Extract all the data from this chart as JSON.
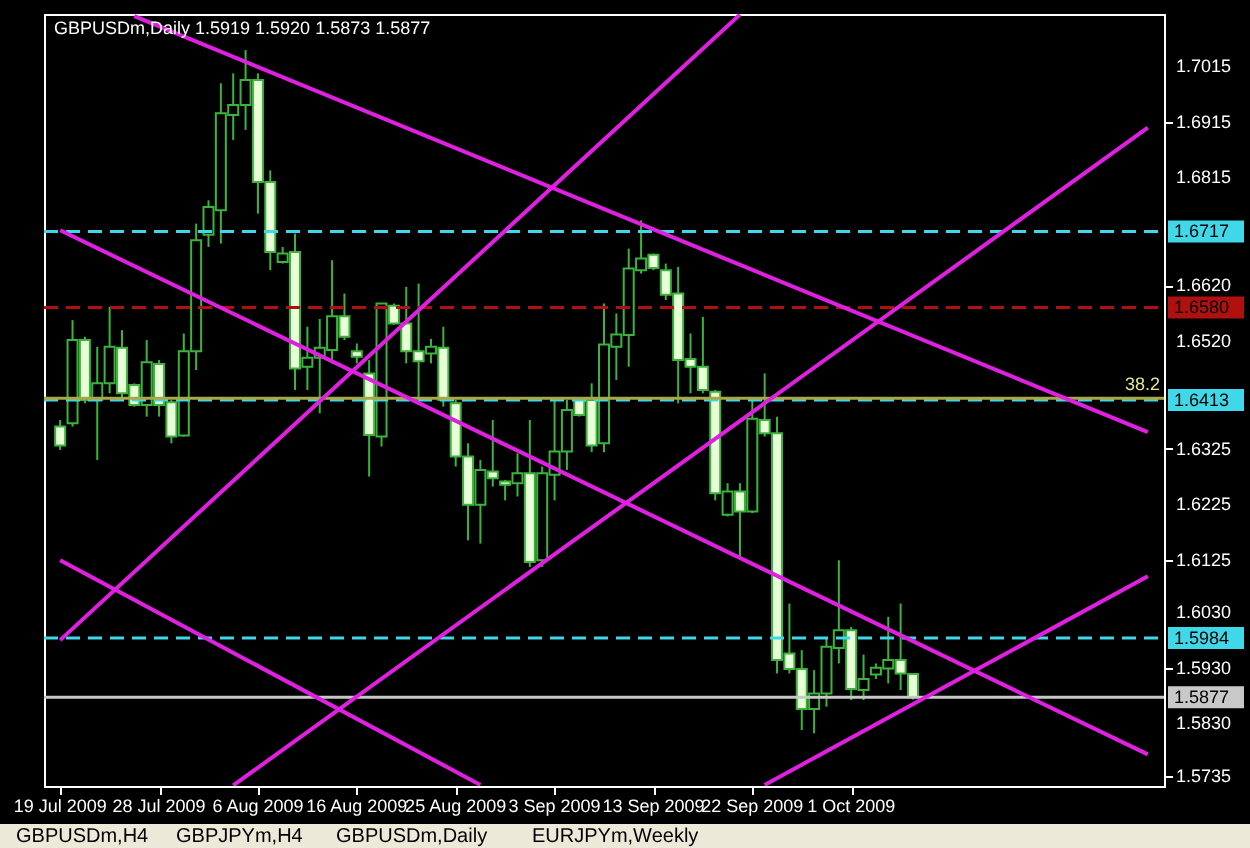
{
  "chart_data": {
    "type": "candlestick",
    "title": "GBPUSDm,Daily  1.5919 1.5920 1.5873 1.5877",
    "categories": [
      "19 Jul 2009",
      null,
      null,
      null,
      null,
      null,
      null,
      null,
      "28 Jul 2009",
      null,
      null,
      null,
      null,
      null,
      null,
      null,
      "6 Aug 2009",
      null,
      null,
      null,
      null,
      null,
      null,
      null,
      "16 Aug 2009",
      null,
      null,
      null,
      null,
      null,
      null,
      null,
      "25 Aug 2009",
      null,
      null,
      null,
      null,
      null,
      null,
      null,
      "3 Sep 2009",
      null,
      null,
      null,
      null,
      null,
      null,
      null,
      "13 Sep 2009",
      null,
      null,
      null,
      null,
      null,
      null,
      null,
      "22 Sep 2009",
      null,
      null,
      null,
      null,
      null,
      null,
      null,
      "1 Oct 2009",
      null,
      null,
      null,
      null,
      null,
      null,
      null,
      null,
      null,
      null,
      null,
      null,
      null,
      null,
      null,
      null,
      null,
      null,
      null,
      null,
      null,
      null,
      null,
      null
    ],
    "ylim": [
      1.5717,
      1.7109
    ],
    "yticks": [
      {
        "value": 1.7015,
        "label": "1.7015"
      },
      {
        "value": 1.6915,
        "label": "1.6915"
      },
      {
        "value": 1.6815,
        "label": "1.6815"
      },
      {
        "value": 1.662,
        "label": "1.6620"
      },
      {
        "value": 1.652,
        "label": "1.6520"
      },
      {
        "value": 1.6325,
        "label": "1.6325"
      },
      {
        "value": 1.6225,
        "label": "1.6225"
      },
      {
        "value": 1.6125,
        "label": "1.6125"
      },
      {
        "value": 1.603,
        "label": "1.6030"
      },
      {
        "value": 1.593,
        "label": "1.5930"
      },
      {
        "value": 1.583,
        "label": "1.5830"
      },
      {
        "value": 1.5735,
        "label": "1.5735"
      }
    ],
    "series": [
      {
        "color": "#3cb43c",
        "colors": [
          "#e8ffd8",
          "#000000",
          "#e8ffd8",
          "#000000",
          "#000000",
          "#e8ffd8",
          "#e8ffd8",
          "#000000",
          "#e8ffd8",
          "#e8ffd8",
          "#000000",
          "#000000",
          "#000000",
          "#000000",
          "#000000",
          "#000000",
          "#e8ffd8",
          "#e8ffd8",
          "#000000",
          "#e8ffd8",
          "#000000",
          "#000000",
          "#000000",
          "#e8ffd8",
          "#e8ffd8",
          "#e8ffd8",
          "#000000",
          "#e8ffd8",
          "#e8ffd8",
          "#e8ffd8",
          "#000000",
          "#e8ffd8",
          "#e8ffd8",
          "#e8ffd8",
          "#000000",
          "#e8ffd8",
          "#e8ffd8",
          "#000000",
          "#e8ffd8",
          "#000000",
          "#000000",
          "#000000",
          "#e8ffd8",
          "#e8ffd8",
          "#000000",
          "#000000",
          "#000000",
          "#000000",
          "#e8ffd8",
          "#e8ffd8",
          "#e8ffd8",
          "#e8ffd8",
          "#e8ffd8",
          "#e8ffd8",
          "#000000",
          "#e8ffd8",
          "#000000",
          "#e8ffd8",
          "#e8ffd8",
          "#e8ffd8",
          "#e8ffd8",
          "#000000",
          "#000000",
          "#000000",
          "#e8ffd8",
          "#000000",
          "#000000",
          "#000000",
          "#e8ffd8",
          "#e8ffd8",
          null,
          null,
          null,
          null,
          null,
          null,
          null,
          null,
          null,
          null,
          null,
          null,
          null,
          null,
          null,
          null,
          null,
          null,
          null
        ],
        "ohlc": [
          [
            1.6365,
            1.6377,
            1.6323,
            1.6331
          ],
          [
            1.6371,
            1.6557,
            1.6365,
            1.6521
          ],
          [
            1.6521,
            1.6527,
            1.6407,
            1.6413
          ],
          [
            1.6413,
            1.6509,
            1.6305,
            1.6443
          ],
          [
            1.6443,
            1.6581,
            1.6425,
            1.6509
          ],
          [
            1.6507,
            1.6539,
            1.6413,
            1.6425
          ],
          [
            1.644,
            1.6443,
            1.6401,
            1.6404
          ],
          [
            1.6404,
            1.6521,
            1.6383,
            1.6481
          ],
          [
            1.6478,
            1.6485,
            1.6383,
            1.6404
          ],
          [
            1.6409,
            1.6413,
            1.6335,
            1.6347
          ],
          [
            1.6349,
            1.6533,
            1.6347,
            1.6501
          ],
          [
            1.6501,
            1.6731,
            1.6467,
            1.6701
          ],
          [
            1.6711,
            1.6773,
            1.6689,
            1.6761
          ],
          [
            1.6755,
            1.6984,
            1.6695,
            1.693
          ],
          [
            1.6927,
            1.7002,
            1.6882,
            1.6945
          ],
          [
            1.6945,
            1.7044,
            1.69,
            1.699
          ],
          [
            1.699,
            1.7002,
            1.6749,
            1.6806
          ],
          [
            1.6806,
            1.6827,
            1.6647,
            1.668
          ],
          [
            1.6662,
            1.6689,
            1.6659,
            1.6677
          ],
          [
            1.668,
            1.6713,
            1.6431,
            1.647
          ],
          [
            1.6473,
            1.6545,
            1.6431,
            1.6489
          ],
          [
            1.6489,
            1.6559,
            1.6389,
            1.6507
          ],
          [
            1.6503,
            1.6665,
            1.6479,
            1.6564
          ],
          [
            1.6564,
            1.6605,
            1.6521,
            1.6527
          ],
          [
            1.6501,
            1.6515,
            1.6479,
            1.6491
          ],
          [
            1.6461,
            1.6485,
            1.6275,
            1.635
          ],
          [
            1.6347,
            1.6587,
            1.6329,
            1.6587
          ],
          [
            1.6583,
            1.6587,
            1.6549,
            1.6551
          ],
          [
            1.6551,
            1.6617,
            1.6479,
            1.6501
          ],
          [
            1.6501,
            1.6623,
            1.6413,
            1.6483
          ],
          [
            1.6497,
            1.6523,
            1.6479,
            1.6509
          ],
          [
            1.6507,
            1.6545,
            1.6401,
            1.6413
          ],
          [
            1.6407,
            1.6413,
            1.6293,
            1.6311
          ],
          [
            1.6311,
            1.6335,
            1.616,
            1.6224
          ],
          [
            1.6224,
            1.6305,
            1.6154,
            1.6287
          ],
          [
            1.6284,
            1.6377,
            1.6257,
            1.6272
          ],
          [
            1.6266,
            1.6269,
            1.6232,
            1.626
          ],
          [
            1.6263,
            1.6317,
            1.6239,
            1.6281
          ],
          [
            1.6281,
            1.6377,
            1.6112,
            1.6121
          ],
          [
            1.6124,
            1.6293,
            1.6112,
            1.6281
          ],
          [
            1.6278,
            1.6413,
            1.6232,
            1.632
          ],
          [
            1.632,
            1.6413,
            1.6287,
            1.6395
          ],
          [
            1.6413,
            1.6415,
            1.6383,
            1.6386
          ],
          [
            1.6413,
            1.6443,
            1.6319,
            1.6331
          ],
          [
            1.6335,
            1.6587,
            1.6319,
            1.6513
          ],
          [
            1.6509,
            1.6569,
            1.6449,
            1.6531
          ],
          [
            1.653,
            1.6686,
            1.6473,
            1.665
          ],
          [
            1.6647,
            1.6737,
            1.6641,
            1.6668
          ],
          [
            1.6675,
            1.6677,
            1.6647,
            1.6651
          ],
          [
            1.6647,
            1.6659,
            1.6593,
            1.6603
          ],
          [
            1.6605,
            1.6653,
            1.6407,
            1.6485
          ],
          [
            1.6487,
            1.6533,
            1.6425,
            1.6473
          ],
          [
            1.6473,
            1.6563,
            1.6425,
            1.6431
          ],
          [
            1.6428,
            1.6431,
            1.6232,
            1.6245
          ],
          [
            1.6206,
            1.6263,
            1.6203,
            1.6248
          ],
          [
            1.6248,
            1.6263,
            1.613,
            1.6212
          ],
          [
            1.6212,
            1.6413,
            1.6209,
            1.6379
          ],
          [
            1.6377,
            1.6461,
            1.6347,
            1.6353
          ],
          [
            1.6353,
            1.6383,
            1.592,
            1.5944
          ],
          [
            1.5956,
            1.6046,
            1.592,
            1.5928
          ],
          [
            1.5928,
            1.5962,
            1.5818,
            1.5856
          ],
          [
            1.5856,
            1.5926,
            1.5812,
            1.5884
          ],
          [
            1.5884,
            1.5986,
            1.586,
            1.5968
          ],
          [
            1.5966,
            1.6124,
            1.5938,
            1.5998
          ],
          [
            1.5998,
            1.6004,
            1.5872,
            1.5892
          ],
          [
            1.589,
            1.5954,
            1.5872,
            1.591
          ],
          [
            1.5918,
            1.5938,
            1.591,
            1.593
          ],
          [
            1.5929,
            1.6022,
            1.5902,
            1.5944
          ],
          [
            1.5944,
            1.6046,
            1.589,
            1.592
          ],
          [
            1.5919,
            1.592,
            1.5873,
            1.5877
          ],
          null,
          null,
          null,
          null,
          null,
          null,
          null,
          null,
          null,
          null,
          null,
          null,
          null,
          null,
          null,
          null,
          null,
          null,
          null
        ]
      },
      {
        "type": "line",
        "color": "#e020e0",
        "values": [
          null,
          null,
          null,
          null,
          null,
          null,
          1.7105,
          null,
          null,
          null,
          null,
          null,
          null,
          null,
          null,
          null,
          null,
          null,
          null,
          null,
          null,
          null,
          null,
          null,
          null,
          null,
          null,
          null,
          null,
          null,
          null,
          null,
          null,
          null,
          null,
          null,
          null,
          null,
          null,
          null,
          null,
          null,
          null,
          null,
          null,
          null,
          null,
          null,
          null,
          null,
          null,
          null,
          null,
          null,
          null,
          null,
          null,
          null,
          null,
          null,
          null,
          null,
          null,
          null,
          null,
          null,
          null,
          null,
          null,
          null,
          null,
          null,
          null,
          null,
          null,
          null,
          null,
          null,
          null,
          null,
          null,
          null,
          null,
          null,
          null,
          null,
          null,
          null,
          1.6355
        ]
      },
      {
        "type": "line",
        "color": "#e020e0",
        "values": [
          1.6719,
          null,
          null,
          null,
          null,
          null,
          null,
          null,
          null,
          null,
          null,
          null,
          null,
          null,
          null,
          null,
          null,
          null,
          null,
          null,
          null,
          null,
          null,
          null,
          null,
          null,
          null,
          null,
          null,
          null,
          null,
          null,
          null,
          null,
          null,
          null,
          null,
          null,
          null,
          null,
          null,
          null,
          null,
          null,
          null,
          null,
          null,
          null,
          null,
          null,
          null,
          null,
          null,
          null,
          null,
          null,
          null,
          null,
          null,
          null,
          null,
          null,
          null,
          null,
          null,
          null,
          null,
          null,
          null,
          null,
          null,
          null,
          null,
          null,
          null,
          null,
          null,
          null,
          null,
          null,
          null,
          null,
          null,
          null,
          null,
          null,
          null,
          null,
          1.5774
        ]
      },
      {
        "type": "line",
        "color": "#e020e0",
        "values": [
          1.6124,
          null,
          null,
          null,
          null,
          null,
          null,
          null,
          null,
          null,
          null,
          null,
          null,
          null,
          null,
          null,
          null,
          null,
          null,
          null,
          null,
          null,
          null,
          null,
          null,
          null,
          null,
          null,
          null,
          null,
          null,
          null,
          null,
          null,
          1.5719,
          null,
          null,
          null,
          null,
          null,
          null,
          null,
          null,
          null,
          null,
          null,
          null,
          null,
          null,
          null,
          null,
          null,
          null,
          null,
          null,
          null,
          null,
          null,
          null,
          null,
          null,
          null,
          null,
          null,
          null,
          null,
          null,
          null,
          null,
          null,
          null,
          null,
          null,
          null,
          null,
          null,
          null,
          null,
          null,
          null,
          null,
          null,
          null,
          null,
          null,
          null,
          null,
          null,
          null
        ]
      },
      {
        "type": "line",
        "color": "#e020e0",
        "values": [
          1.598,
          null,
          null,
          null,
          null,
          null,
          null,
          null,
          null,
          null,
          null,
          null,
          null,
          null,
          null,
          null,
          null,
          null,
          null,
          null,
          null,
          null,
          null,
          null,
          null,
          null,
          null,
          null,
          null,
          null,
          null,
          null,
          null,
          null,
          null,
          null,
          null,
          null,
          null,
          null,
          null,
          null,
          null,
          null,
          null,
          null,
          null,
          null,
          null,
          null,
          null,
          null,
          null,
          null,
          null,
          1.7108,
          null,
          null,
          null,
          null,
          null,
          null,
          null,
          null,
          null,
          null,
          null,
          null,
          null,
          null,
          null,
          null,
          null,
          null,
          null,
          null,
          null,
          null,
          null,
          null,
          null,
          null,
          null,
          null,
          null,
          null,
          null,
          null,
          null
        ]
      },
      {
        "type": "line",
        "color": "#e020e0",
        "values": [
          null,
          null,
          null,
          null,
          null,
          null,
          null,
          null,
          null,
          null,
          null,
          null,
          null,
          null,
          1.5718,
          null,
          null,
          null,
          null,
          null,
          null,
          null,
          null,
          null,
          null,
          null,
          null,
          null,
          null,
          null,
          null,
          null,
          null,
          null,
          null,
          null,
          null,
          null,
          null,
          null,
          null,
          null,
          null,
          null,
          null,
          null,
          null,
          null,
          null,
          null,
          null,
          null,
          null,
          null,
          null,
          null,
          null,
          null,
          null,
          null,
          null,
          null,
          null,
          null,
          null,
          null,
          null,
          null,
          null,
          null,
          null,
          null,
          null,
          null,
          null,
          null,
          null,
          null,
          null,
          null,
          null,
          null,
          null,
          null,
          null,
          null,
          null,
          null,
          1.6904
        ]
      },
      {
        "type": "line",
        "color": "#e020e0",
        "values": [
          null,
          null,
          null,
          null,
          null,
          null,
          null,
          null,
          null,
          null,
          null,
          null,
          null,
          null,
          null,
          null,
          null,
          null,
          null,
          null,
          null,
          null,
          null,
          null,
          null,
          null,
          null,
          null,
          null,
          null,
          null,
          null,
          null,
          null,
          null,
          null,
          null,
          null,
          null,
          null,
          null,
          null,
          null,
          null,
          null,
          null,
          null,
          null,
          null,
          null,
          null,
          null,
          null,
          null,
          null,
          null,
          null,
          1.5719,
          null,
          null,
          null,
          null,
          null,
          null,
          null,
          null,
          null,
          null,
          null,
          null,
          null,
          null,
          null,
          null,
          null,
          null,
          null,
          null,
          null,
          null,
          null,
          null,
          null,
          null,
          null,
          null,
          null,
          null,
          1.6095
        ]
      }
    ],
    "ref_lines": [
      {
        "axis": "y",
        "value": 1.6717,
        "label": "1.6717",
        "color": "#40d8e8",
        "line_style": "dashed"
      },
      {
        "axis": "y",
        "value": 1.658,
        "label": "1.6580",
        "color": "#b01010",
        "line_style": "dashed"
      },
      {
        "axis": "y",
        "value": 1.6413,
        "label": "1.6413",
        "color": "#40d8e8",
        "line_style": "dashed"
      },
      {
        "axis": "y",
        "value": 1.6416,
        "color": "#a8a848",
        "line_style": "solid"
      },
      {
        "axis": "y",
        "value": 1.5984,
        "label": "1.5984",
        "color": "#40d8e8",
        "line_style": "dashed"
      },
      {
        "axis": "y",
        "value": 1.5877,
        "label": "1.5877",
        "color": "#c8c8c8",
        "line_style": "solid"
      }
    ],
    "annotations": [
      {
        "text": "38.2",
        "y": 1.6416
      },
      "GBPUSDm,H4",
      "GBPJPYm,H4",
      "GBPUSDm,Daily",
      "EURJPYm,Weekly"
    ]
  }
}
